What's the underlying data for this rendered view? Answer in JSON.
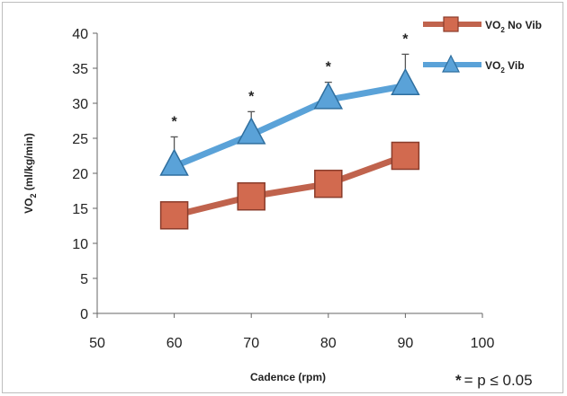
{
  "chart_data": {
    "type": "line",
    "x": [
      60,
      70,
      80,
      90
    ],
    "xlim": [
      50,
      100
    ],
    "xticks": [
      "50",
      "60",
      "70",
      "80",
      "90",
      "100"
    ],
    "ylim": [
      0,
      40
    ],
    "yticks": [
      "0",
      "5",
      "10",
      "15",
      "20",
      "25",
      "30",
      "35",
      "40"
    ],
    "xlabel": "Cadence (rpm)",
    "ylabel": {
      "main": "VO",
      "sub": "2",
      "rest": " (ml/kg/min)"
    },
    "grid": false,
    "legend_position": "top-right",
    "series": [
      {
        "name": {
          "main": "VO",
          "sub": "2",
          "rest": " No Vib"
        },
        "values": [
          14.0,
          16.7,
          18.5,
          22.5
        ],
        "marker": "square",
        "color": "#c0634d",
        "marker_color": "#d26a4f"
      },
      {
        "name": {
          "main": "VO",
          "sub": "2",
          "rest": " Vib"
        },
        "values": [
          21.0,
          25.5,
          30.5,
          32.5
        ],
        "errors_upper": [
          25.2,
          28.8,
          33.0,
          37.0
        ],
        "marker": "triangle",
        "color": "#5aa2d8",
        "marker_color": "#5aa2d8"
      }
    ],
    "annotations": [
      "*",
      "*",
      "*",
      "*"
    ],
    "footnote": {
      "star": "*",
      "text": "= p ≤ 0.05"
    }
  }
}
